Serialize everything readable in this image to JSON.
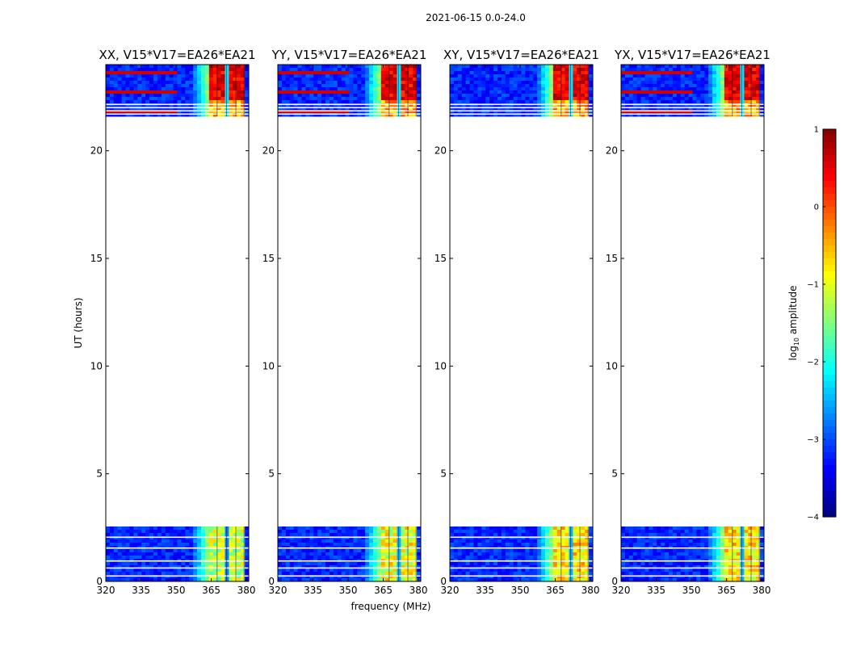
{
  "figure": {
    "suptitle": "2021-06-15 0.0-24.0"
  },
  "chart_data": {
    "type": "heatmap",
    "description_fields_only": true,
    "xlabel": "frequency (MHz)",
    "ylabel": "UT (hours)",
    "xlim": [
      320,
      381
    ],
    "ylim": [
      0,
      24
    ],
    "x_ticks": [
      "320",
      "335",
      "350",
      "365",
      "380"
    ],
    "x_tick_values": [
      320,
      335,
      350,
      365,
      380
    ],
    "y_ticks": [
      "0",
      "5",
      "10",
      "15",
      "20"
    ],
    "y_tick_values": [
      0,
      5,
      10,
      15,
      20
    ],
    "panels": [
      {
        "title": "XX, V15*V17=EA26*EA21",
        "pol": "XX"
      },
      {
        "title": "YY, V15*V17=EA26*EA21",
        "pol": "YY"
      },
      {
        "title": "XY, V15*V17=EA26*EA21",
        "pol": "XY"
      },
      {
        "title": "YX, V15*V17=EA26*EA21",
        "pol": "YX"
      }
    ],
    "data_time_ranges_hours": [
      [
        0.0,
        2.55
      ],
      [
        21.6,
        24.0
      ]
    ],
    "strong_band_freq_range_mhz": [
      364,
      380
    ],
    "colorbar": {
      "label": "log10 amplitude",
      "label_main": "log",
      "label_sub": "10",
      "label_rest": " amplitude",
      "min": -4,
      "max": 1,
      "ticks": [
        "−4",
        "−3",
        "−2",
        "−1",
        "0",
        "1"
      ],
      "tick_values": [
        -4,
        -3,
        -2,
        -1,
        0,
        1
      ]
    }
  }
}
